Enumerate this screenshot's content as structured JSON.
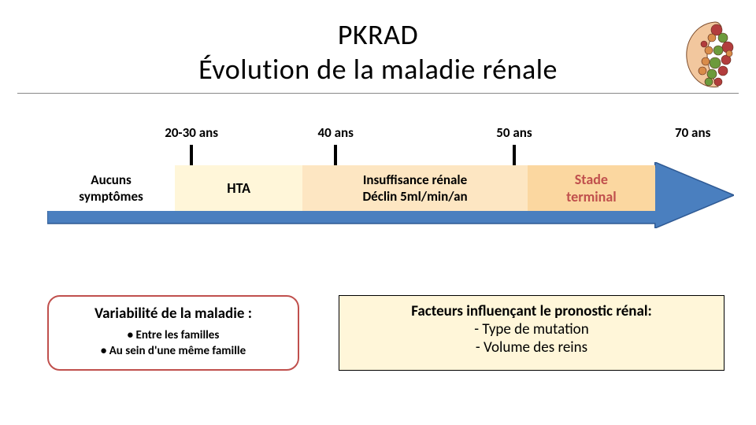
{
  "title": {
    "line1": "PKRAD",
    "line2": "Évolution de la maladie rénale"
  },
  "colors": {
    "arrow_fill": "#4a7fbf",
    "arrow_stroke": "#2f5a94",
    "stage1_bg": "#ffffff",
    "stage2_bg": "#fff6d9",
    "stage3_bg": "#fde6c2",
    "stage4_bg": "#fbd7a0",
    "stage4_text": "#c0504d",
    "box_left_border": "#c0504d",
    "box_right_bg": "#fff6d9",
    "kidney_body": "#f2c79e",
    "kidney_cyst1": "#b23d3d",
    "kidney_cyst2": "#6c9a3c",
    "kidney_cyst3": "#d98c4a"
  },
  "timeline": {
    "ages": [
      {
        "label": "20-30 ans",
        "pos_pct": 21
      },
      {
        "label": "40 ans",
        "pos_pct": 42
      },
      {
        "label": "50 ans",
        "pos_pct": 68
      },
      {
        "label": "70 ans",
        "pos_pct": 94
      }
    ],
    "tick_positions_pct": [
      21,
      42,
      68
    ],
    "stages": [
      {
        "key": "s1",
        "lines": [
          "Aucuns",
          "symptômes"
        ],
        "width_pct": 21
      },
      {
        "key": "s2",
        "lines": [
          "HTA"
        ],
        "width_pct": 21
      },
      {
        "key": "s3",
        "lines": [
          "Insuffisance rénale",
          "Déclin 5ml/min/an"
        ],
        "width_pct": 37
      },
      {
        "key": "s4",
        "lines": [
          "Stade",
          "terminal"
        ],
        "width_pct": 21
      }
    ]
  },
  "box_left": {
    "title": "Variabilité de la maladie :",
    "items": [
      "Entre les familles",
      "Au sein d'une même famille"
    ]
  },
  "box_right": {
    "title": "Facteurs influençant le pronostic rénal:",
    "items": [
      "Type de mutation",
      "Volume des reins"
    ]
  }
}
